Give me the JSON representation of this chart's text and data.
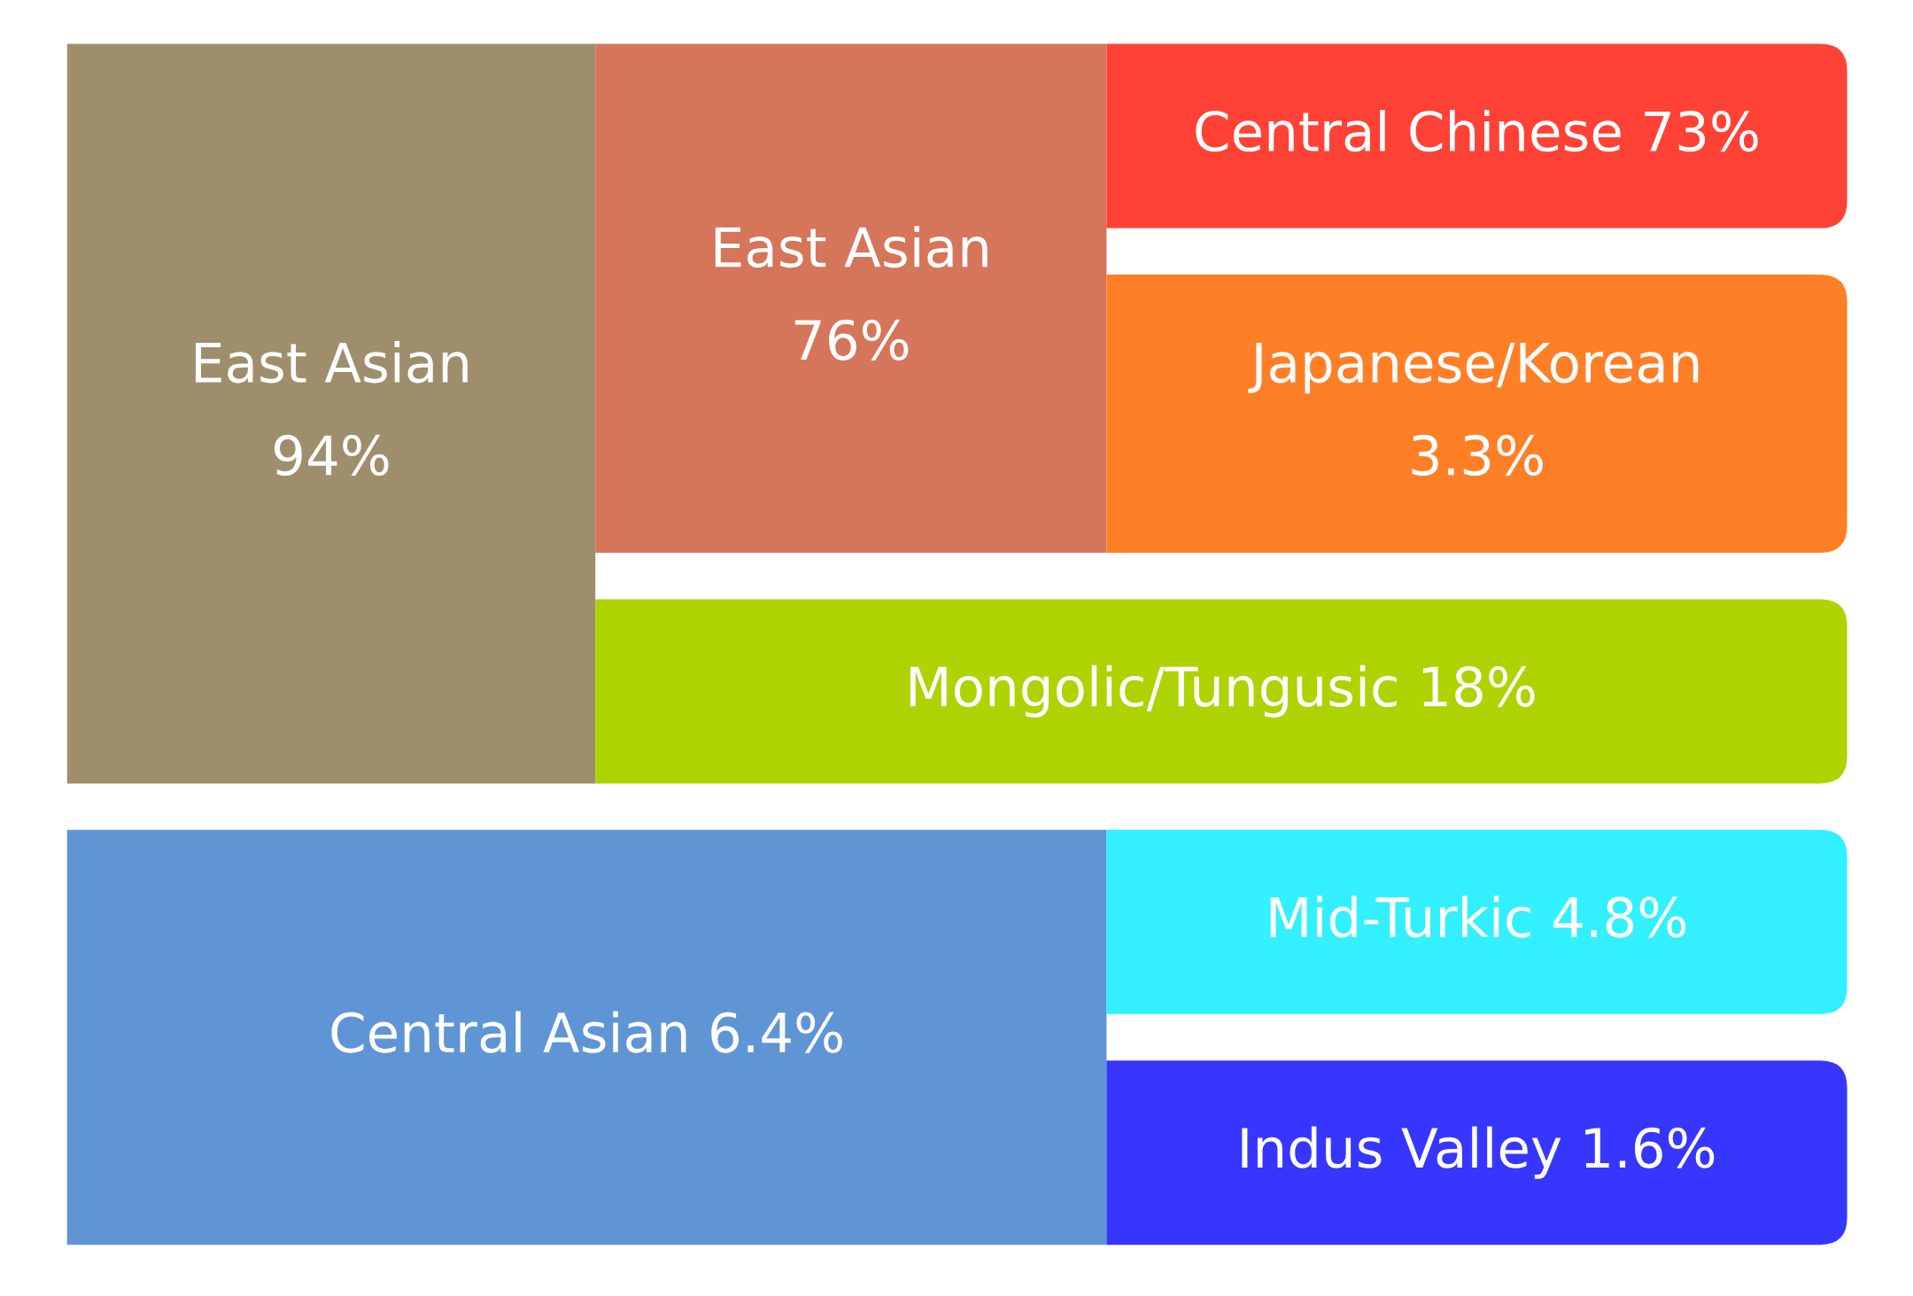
{
  "chart_data": {
    "type": "other",
    "categories": [
      "East Asian",
      "East Asian",
      "Central Chinese",
      "Japanese/Korean",
      "Mongolic/Tungusic",
      "Central Asian",
      "Mid-Turkic",
      "Indus Valley"
    ],
    "values": [
      94,
      76,
      73,
      3.3,
      18,
      6.4,
      4.8,
      1.6
    ],
    "value_labels": [
      "94%",
      "76%",
      "73%",
      "3.3%",
      "18%",
      "6.4%",
      "4.8%",
      "1.6%"
    ],
    "colors": [
      "#9e8e6c",
      "#d5755a",
      "#ff4136",
      "#ff7f27",
      "#add300",
      "#5f95d5",
      "#33f0ff",
      "#3636ff"
    ]
  }
}
